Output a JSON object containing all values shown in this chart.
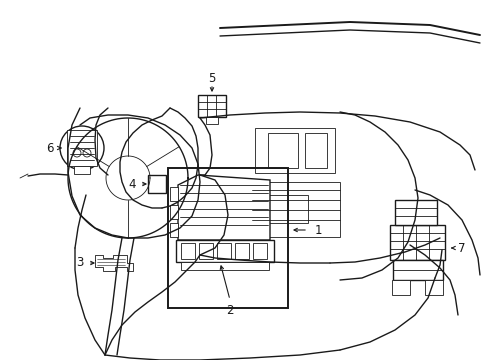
{
  "background_color": "#ffffff",
  "line_color": "#1a1a1a",
  "figsize": [
    4.89,
    3.6
  ],
  "dpi": 100,
  "lw_main": 1.0,
  "lw_thick": 1.4,
  "lw_thin": 0.6,
  "label_fontsize": 8.5
}
